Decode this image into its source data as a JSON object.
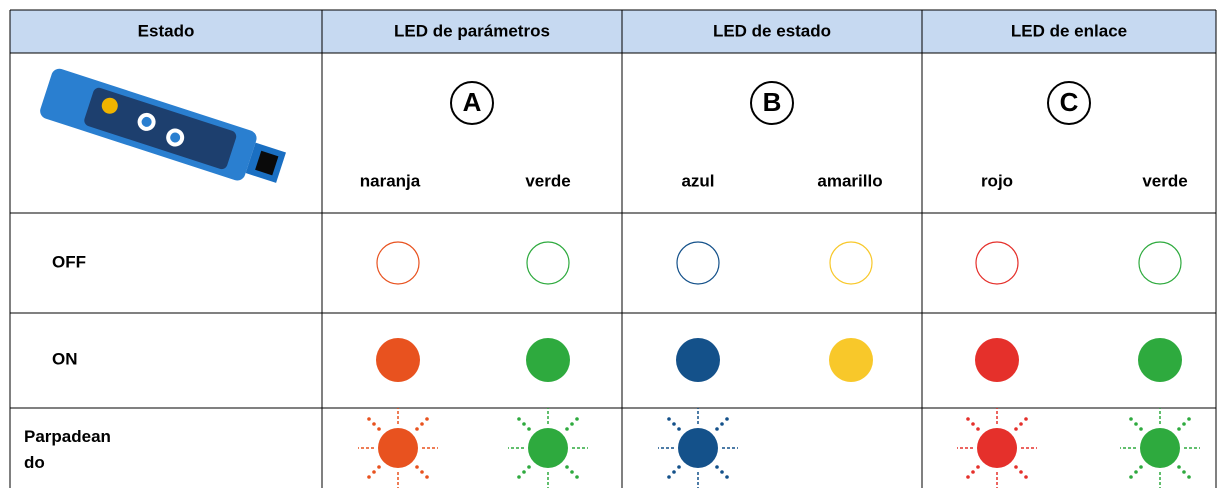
{
  "table": {
    "header": [
      "Estado",
      "LED de parámetros",
      "LED de estado",
      "LED de enlace"
    ],
    "groups": [
      {
        "letter": "A",
        "colors": [
          "naranja",
          "verde"
        ]
      },
      {
        "letter": "B",
        "colors": [
          "azul",
          "amarillo"
        ]
      },
      {
        "letter": "C",
        "colors": [
          "rojo",
          "verde"
        ]
      }
    ],
    "rows": [
      {
        "label": "OFF"
      },
      {
        "label": "ON"
      },
      {
        "label": "Parpadeando"
      }
    ]
  }
}
